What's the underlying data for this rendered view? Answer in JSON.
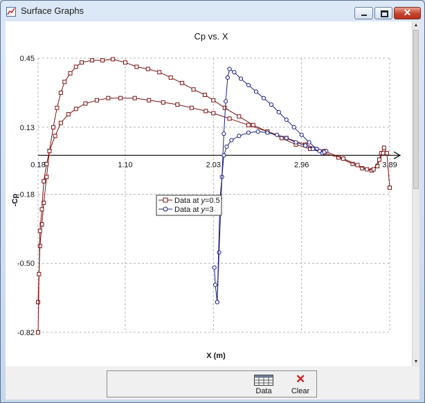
{
  "window": {
    "title": "Surface Graphs"
  },
  "toolbar": {
    "data_label": "Data",
    "clear_label": "Clear"
  },
  "colors": {
    "series1": "#7a1010",
    "series2": "#1c1f80",
    "grid": "#b4b4b4"
  },
  "chart_data": {
    "type": "line",
    "title": "Cp vs. X",
    "xlabel": "X (m)",
    "ylabel": "-Cp",
    "xlim": [
      0.18,
      3.89
    ],
    "ylim": [
      -0.82,
      0.45
    ],
    "x_ticks": [
      "0.18",
      "1.10",
      "2.03",
      "2.96",
      "3.89"
    ],
    "y_ticks": [
      "0.45",
      "0.13",
      "-0.18",
      "-0.50",
      "-0.82"
    ],
    "grid": true,
    "legend_position": "center-left",
    "series": [
      {
        "name": "Data at y=0.5",
        "marker": "square",
        "upper": [
          [
            0.18,
            -0.68
          ],
          [
            0.2,
            -0.42
          ],
          [
            0.22,
            -0.32
          ],
          [
            0.24,
            -0.22
          ],
          [
            0.27,
            -0.1
          ],
          [
            0.3,
            0.02
          ],
          [
            0.34,
            0.13
          ],
          [
            0.38,
            0.22
          ],
          [
            0.42,
            0.29
          ],
          [
            0.46,
            0.34
          ],
          [
            0.52,
            0.38
          ],
          [
            0.58,
            0.41
          ],
          [
            0.64,
            0.43
          ],
          [
            0.75,
            0.44
          ],
          [
            0.86,
            0.44
          ],
          [
            0.97,
            0.445
          ],
          [
            1.1,
            0.43
          ],
          [
            1.22,
            0.41
          ],
          [
            1.34,
            0.4
          ],
          [
            1.46,
            0.385
          ],
          [
            1.58,
            0.36
          ],
          [
            1.7,
            0.335
          ],
          [
            1.82,
            0.305
          ],
          [
            1.94,
            0.28
          ],
          [
            2.03,
            0.255
          ],
          [
            2.15,
            0.22
          ],
          [
            2.3,
            0.18
          ],
          [
            2.45,
            0.14
          ],
          [
            2.6,
            0.11
          ],
          [
            2.75,
            0.08
          ],
          [
            2.9,
            0.05
          ],
          [
            3.05,
            0.03
          ],
          [
            3.2,
            0.01
          ],
          [
            3.35,
            -0.01
          ],
          [
            3.5,
            -0.04
          ],
          [
            3.6,
            -0.06
          ],
          [
            3.7,
            -0.07
          ],
          [
            3.76,
            -0.05
          ],
          [
            3.8,
            0.01
          ],
          [
            3.83,
            0.035
          ],
          [
            3.86,
            0.01
          ],
          [
            3.89,
            -0.15
          ]
        ],
        "lower": [
          [
            0.18,
            -0.82
          ],
          [
            0.19,
            -0.55
          ],
          [
            0.2,
            -0.35
          ],
          [
            0.22,
            -0.25
          ],
          [
            0.24,
            -0.12
          ],
          [
            0.27,
            -0.04
          ],
          [
            0.3,
            0.02
          ],
          [
            0.36,
            0.09
          ],
          [
            0.42,
            0.15
          ],
          [
            0.5,
            0.19
          ],
          [
            0.58,
            0.215
          ],
          [
            0.68,
            0.24
          ],
          [
            0.8,
            0.255
          ],
          [
            0.92,
            0.265
          ],
          [
            1.05,
            0.265
          ],
          [
            1.2,
            0.265
          ],
          [
            1.35,
            0.255
          ],
          [
            1.5,
            0.245
          ],
          [
            1.65,
            0.235
          ],
          [
            1.8,
            0.22
          ],
          [
            1.95,
            0.205
          ],
          [
            2.03,
            0.195
          ],
          [
            2.2,
            0.17
          ],
          [
            2.4,
            0.14
          ],
          [
            2.6,
            0.11
          ],
          [
            2.8,
            0.08
          ],
          [
            3.0,
            0.05
          ],
          [
            3.2,
            0.02
          ],
          [
            3.4,
            -0.015
          ],
          [
            3.55,
            -0.045
          ],
          [
            3.65,
            -0.065
          ],
          [
            3.72,
            -0.065
          ],
          [
            3.78,
            -0.02
          ],
          [
            3.82,
            0.01
          ]
        ]
      },
      {
        "name": "Data at y=3",
        "marker": "circle",
        "upper": [
          [
            2.04,
            -0.52
          ],
          [
            2.05,
            -0.6
          ],
          [
            2.07,
            -0.68
          ],
          [
            2.09,
            -0.45
          ],
          [
            2.12,
            -0.1
          ],
          [
            2.14,
            0.1
          ],
          [
            2.16,
            0.25
          ],
          [
            2.18,
            0.36
          ],
          [
            2.2,
            0.4
          ],
          [
            2.25,
            0.385
          ],
          [
            2.32,
            0.355
          ],
          [
            2.4,
            0.325
          ],
          [
            2.48,
            0.295
          ],
          [
            2.56,
            0.265
          ],
          [
            2.64,
            0.235
          ],
          [
            2.72,
            0.2
          ],
          [
            2.8,
            0.165
          ],
          [
            2.88,
            0.13
          ],
          [
            2.96,
            0.095
          ],
          [
            3.04,
            0.06
          ],
          [
            3.12,
            0.03
          ],
          [
            3.18,
            0.01
          ],
          [
            3.22,
            0.02
          ]
        ],
        "lower": [
          [
            2.07,
            -0.68
          ],
          [
            2.1,
            -0.2
          ],
          [
            2.14,
            0.0
          ],
          [
            2.17,
            0.04
          ],
          [
            2.22,
            0.07
          ],
          [
            2.3,
            0.09
          ],
          [
            2.4,
            0.105
          ],
          [
            2.5,
            0.11
          ],
          [
            2.6,
            0.105
          ],
          [
            2.7,
            0.095
          ],
          [
            2.8,
            0.08
          ],
          [
            2.9,
            0.06
          ],
          [
            3.0,
            0.045
          ],
          [
            3.08,
            0.03
          ],
          [
            3.15,
            0.02
          ],
          [
            3.2,
            0.015
          ]
        ]
      }
    ]
  }
}
